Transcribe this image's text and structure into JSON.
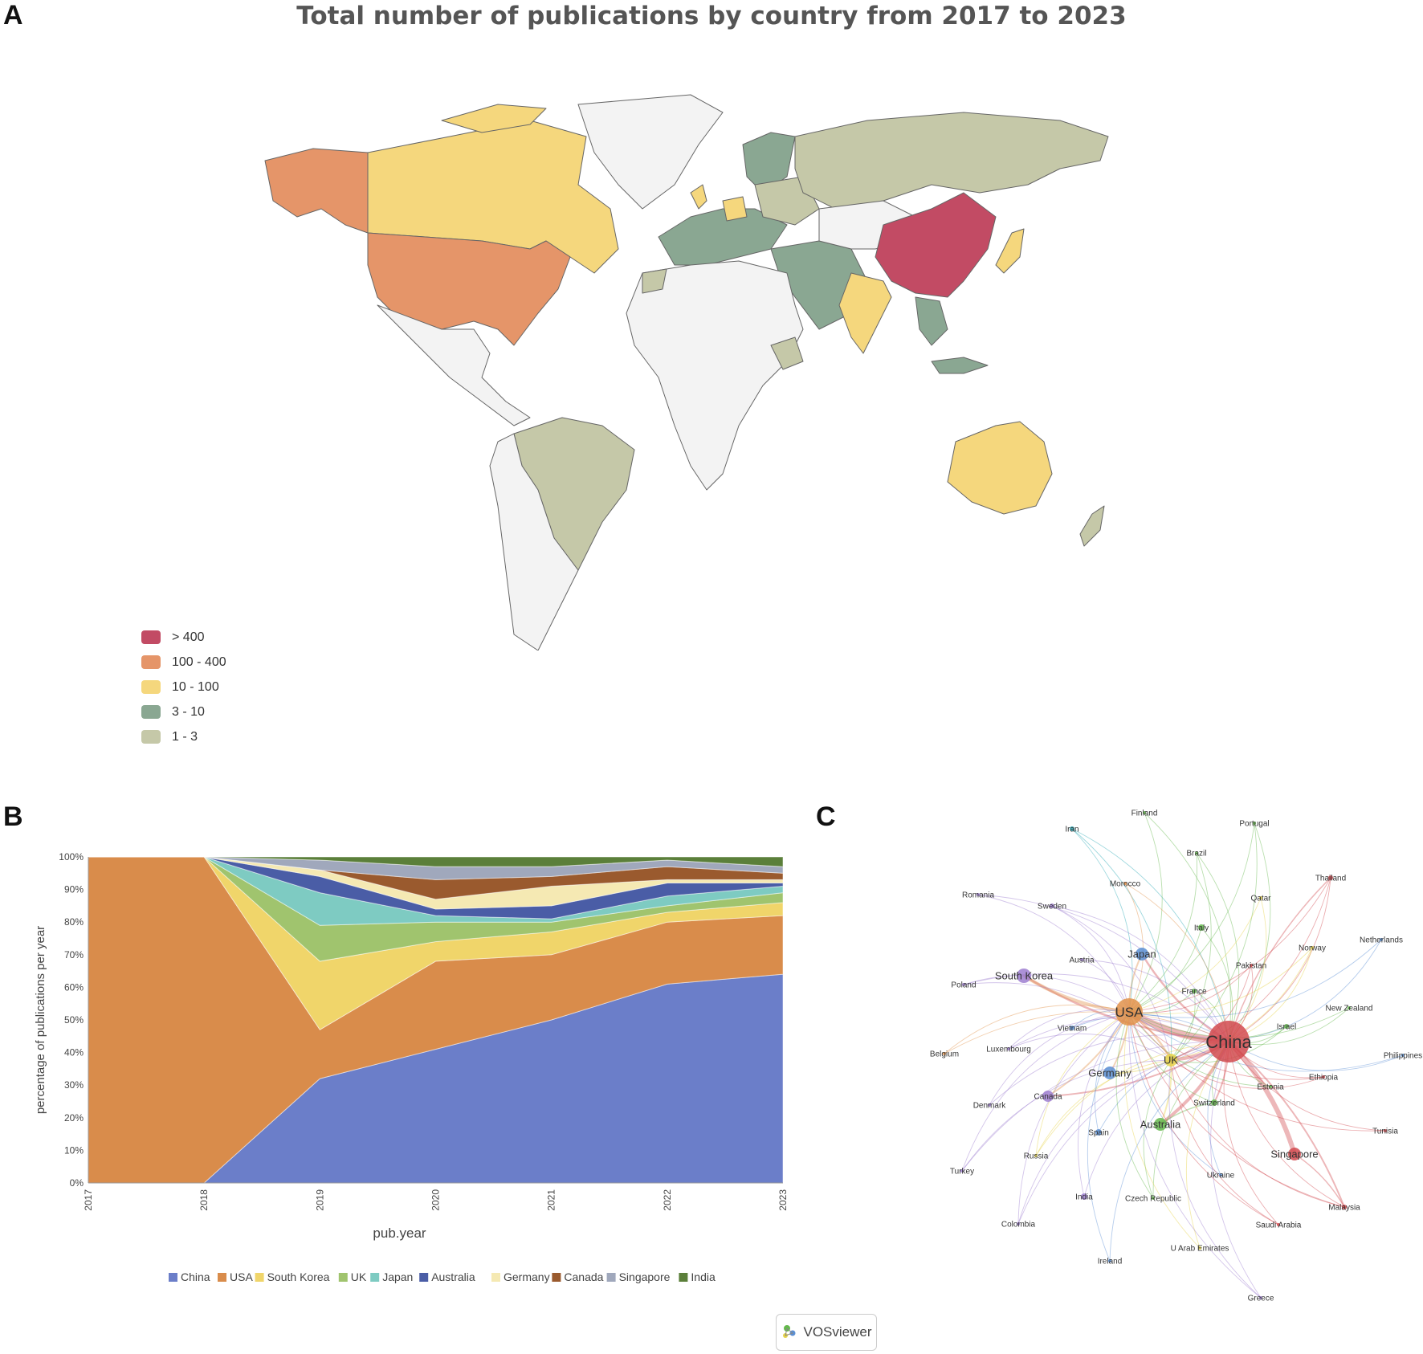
{
  "panels": {
    "a": "A",
    "b": "B",
    "c": "C"
  },
  "map": {
    "title": "Total number of publications by country from 2017 to 2023",
    "legend": [
      {
        "label": "> 400",
        "color": "#c24b64"
      },
      {
        "label": "100 - 400",
        "color": "#e59569"
      },
      {
        "label": "10 - 100",
        "color": "#f5d77d"
      },
      {
        "label": "3 - 10",
        "color": "#8aa792"
      },
      {
        "label": "1 - 3",
        "color": "#c5c8a8"
      }
    ]
  },
  "chart_data": [
    {
      "type": "area",
      "stacked": "percent",
      "xlabel": "pub.year",
      "ylabel": "percentage of publications per year",
      "x": [
        "2017",
        "2018",
        "2019",
        "2020",
        "2021",
        "2022",
        "2023"
      ],
      "y_ticks": [
        "0%",
        "10%",
        "20%",
        "30%",
        "40%",
        "50%",
        "60%",
        "70%",
        "80%",
        "90%",
        "100%"
      ],
      "ylim": [
        0,
        100
      ],
      "legend_position": "bottom",
      "series": [
        {
          "name": "China",
          "color": "#6b7ec9",
          "values": [
            0,
            0,
            32,
            41,
            50,
            61,
            64
          ]
        },
        {
          "name": "USA",
          "color": "#d98c4b",
          "values": [
            100,
            100,
            15,
            27,
            20,
            19,
            18
          ]
        },
        {
          "name": "South Korea",
          "color": "#f0d56a",
          "values": [
            0,
            0,
            21,
            6,
            7,
            3,
            4
          ]
        },
        {
          "name": "UK",
          "color": "#a0c46e",
          "values": [
            0,
            0,
            11,
            6,
            3,
            2,
            3
          ]
        },
        {
          "name": "Japan",
          "color": "#7ecbc2",
          "values": [
            0,
            0,
            10,
            2,
            1,
            3,
            2
          ]
        },
        {
          "name": "Australia",
          "color": "#4a5da6",
          "values": [
            0,
            0,
            5,
            2,
            4,
            4,
            1
          ]
        },
        {
          "name": "Germany",
          "color": "#f5e9b3",
          "values": [
            0,
            0,
            2,
            3,
            6,
            1,
            1
          ]
        },
        {
          "name": "Canada",
          "color": "#9a5a2e",
          "values": [
            0,
            0,
            0,
            6,
            3,
            4,
            2
          ]
        },
        {
          "name": "Singapore",
          "color": "#a0a8bc",
          "values": [
            0,
            0,
            3,
            4,
            3,
            2,
            2
          ]
        },
        {
          "name": "India",
          "color": "#5b7f3a",
          "values": [
            0,
            0,
            1,
            3,
            3,
            1,
            3
          ]
        }
      ]
    },
    {
      "type": "network",
      "tool": "VOSviewer",
      "nodes": [
        {
          "label": "China",
          "size": 26,
          "color": "#d24a4f",
          "cluster": 1
        },
        {
          "label": "USA",
          "size": 17,
          "color": "#e2924a",
          "cluster": 4
        },
        {
          "label": "South Korea",
          "size": 9,
          "color": "#9e7ed0",
          "cluster": 3
        },
        {
          "label": "Japan",
          "size": 8,
          "color": "#5b8fd4",
          "cluster": 2
        },
        {
          "label": "UK",
          "size": 8,
          "color": "#e6d34a",
          "cluster": 5
        },
        {
          "label": "Germany",
          "size": 8,
          "color": "#5b8fd4",
          "cluster": 2
        },
        {
          "label": "Canada",
          "size": 7,
          "color": "#9e7ed0",
          "cluster": 3
        },
        {
          "label": "Australia",
          "size": 8,
          "color": "#64b94c",
          "cluster": 6
        },
        {
          "label": "Singapore",
          "size": 8,
          "color": "#d24a4f",
          "cluster": 1
        },
        {
          "label": "Italy",
          "size": 4,
          "color": "#64b94c",
          "cluster": 6
        },
        {
          "label": "Switzerland",
          "size": 4,
          "color": "#64b94c",
          "cluster": 6
        },
        {
          "label": "Spain",
          "size": 4,
          "color": "#5b8fd4",
          "cluster": 2
        },
        {
          "label": "India",
          "size": 4,
          "color": "#9e7ed0",
          "cluster": 3
        },
        {
          "label": "France",
          "size": 3,
          "color": "#64b94c",
          "cluster": 6
        },
        {
          "label": "Israel",
          "size": 3,
          "color": "#64b94c",
          "cluster": 6
        },
        {
          "label": "Vietnam",
          "size": 3,
          "color": "#5b8fd4",
          "cluster": 2
        },
        {
          "label": "Sweden",
          "size": 3,
          "color": "#9e7ed0",
          "cluster": 3
        },
        {
          "label": "Iran",
          "size": 3,
          "color": "#2aa8b5",
          "cluster": 7
        },
        {
          "label": "Finland",
          "size": 2,
          "color": "#64b94c",
          "cluster": 6
        },
        {
          "label": "Portugal",
          "size": 2,
          "color": "#64b94c",
          "cluster": 6
        },
        {
          "label": "Brazil",
          "size": 2,
          "color": "#64b94c",
          "cluster": 6
        },
        {
          "label": "Thailand",
          "size": 3,
          "color": "#d24a4f",
          "cluster": 1
        },
        {
          "label": "Morocco",
          "size": 2,
          "color": "#e2924a",
          "cluster": 4
        },
        {
          "label": "Romania",
          "size": 2,
          "color": "#9e7ed0",
          "cluster": 3
        },
        {
          "label": "Qatar",
          "size": 2,
          "color": "#e6d34a",
          "cluster": 5
        },
        {
          "label": "Austria",
          "size": 2,
          "color": "#9e7ed0",
          "cluster": 3
        },
        {
          "label": "Netherlands",
          "size": 2,
          "color": "#5b8fd4",
          "cluster": 2
        },
        {
          "label": "Norway",
          "size": 2,
          "color": "#e6d34a",
          "cluster": 5
        },
        {
          "label": "Pakistan",
          "size": 2,
          "color": "#d24a4f",
          "cluster": 1
        },
        {
          "label": "Poland",
          "size": 2,
          "color": "#9e7ed0",
          "cluster": 3
        },
        {
          "label": "New Zealand",
          "size": 2,
          "color": "#64b94c",
          "cluster": 6
        },
        {
          "label": "Luxembourg",
          "size": 2,
          "color": "#9e7ed0",
          "cluster": 3
        },
        {
          "label": "Belgium",
          "size": 2,
          "color": "#e2924a",
          "cluster": 4
        },
        {
          "label": "Philippines",
          "size": 2,
          "color": "#5b8fd4",
          "cluster": 2
        },
        {
          "label": "Ethiopia",
          "size": 2,
          "color": "#d24a4f",
          "cluster": 1
        },
        {
          "label": "Estonia",
          "size": 2,
          "color": "#64b94c",
          "cluster": 6
        },
        {
          "label": "Denmark",
          "size": 2,
          "color": "#9e7ed0",
          "cluster": 3
        },
        {
          "label": "Russia",
          "size": 2,
          "color": "#e6d34a",
          "cluster": 5
        },
        {
          "label": "Tunisia",
          "size": 2,
          "color": "#d24a4f",
          "cluster": 1
        },
        {
          "label": "Turkey",
          "size": 2,
          "color": "#9e7ed0",
          "cluster": 3
        },
        {
          "label": "Ukraine",
          "size": 2,
          "color": "#5b8fd4",
          "cluster": 2
        },
        {
          "label": "Czech Republic",
          "size": 2,
          "color": "#64b94c",
          "cluster": 6
        },
        {
          "label": "Malaysia",
          "size": 3,
          "color": "#d24a4f",
          "cluster": 1
        },
        {
          "label": "Colombia",
          "size": 2,
          "color": "#9e7ed0",
          "cluster": 3
        },
        {
          "label": "Saudi Arabia",
          "size": 2,
          "color": "#d24a4f",
          "cluster": 1
        },
        {
          "label": "U Arab Emirates",
          "size": 2,
          "color": "#e6d34a",
          "cluster": 5
        },
        {
          "label": "Ireland",
          "size": 2,
          "color": "#5b8fd4",
          "cluster": 2
        },
        {
          "label": "Greece",
          "size": 2,
          "color": "#9e7ed0",
          "cluster": 3
        }
      ]
    }
  ],
  "vos_badge": "VOSviewer"
}
